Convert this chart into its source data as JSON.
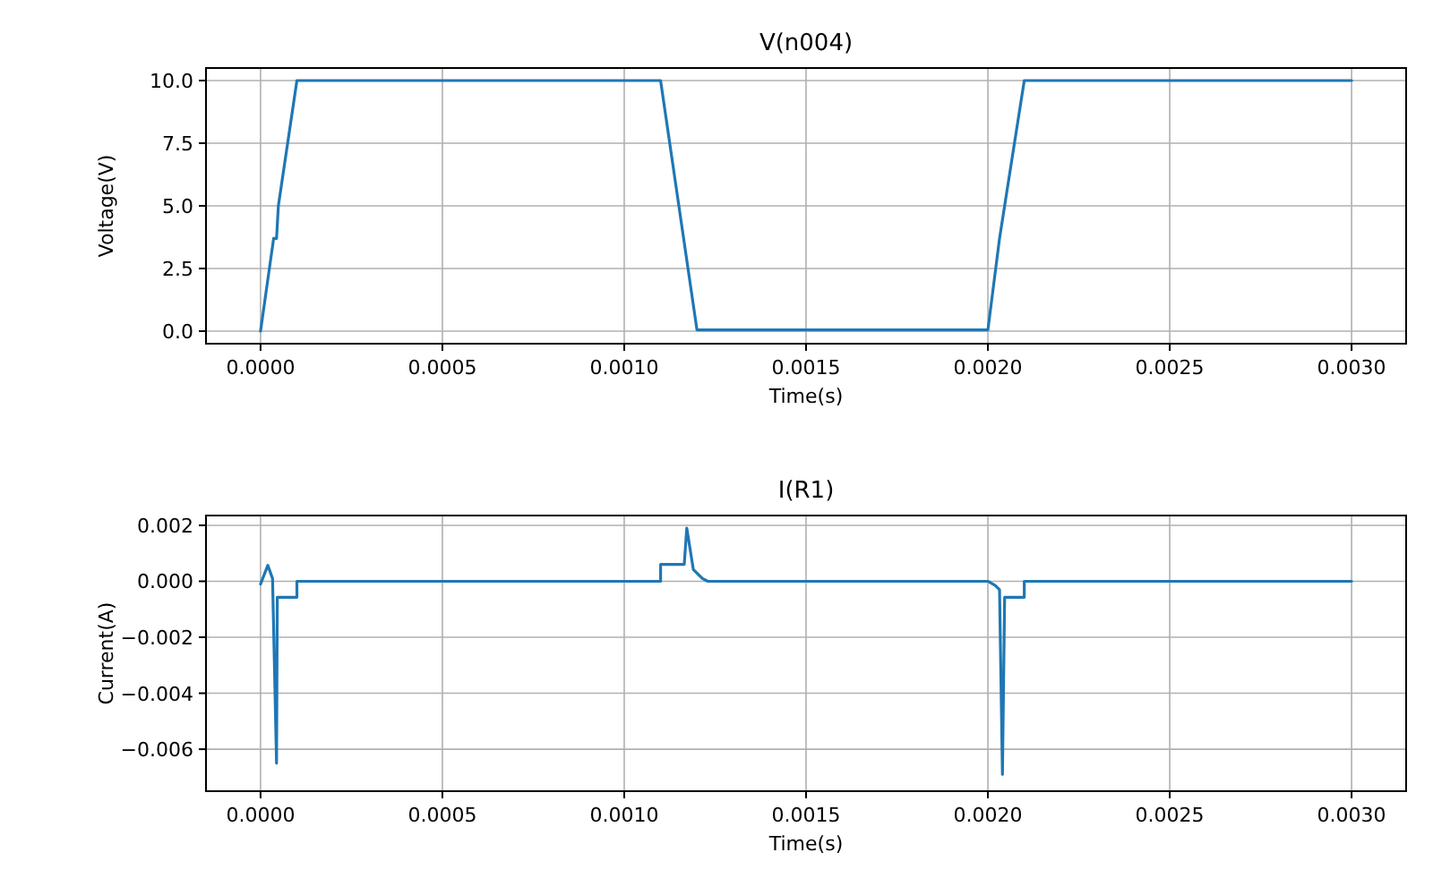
{
  "chart_data": [
    {
      "type": "line",
      "title": "V(n004)",
      "xlabel": "Time(s)",
      "ylabel": "Voltage(V)",
      "grid": true,
      "xlim": [
        -0.00015,
        0.00315
      ],
      "xticks": [
        {
          "value": 0,
          "label": "0.0000"
        },
        {
          "value": 0.0005,
          "label": "0.0005"
        },
        {
          "value": 0.001,
          "label": "0.0010"
        },
        {
          "value": 0.0015,
          "label": "0.0015"
        },
        {
          "value": 0.002,
          "label": "0.0020"
        },
        {
          "value": 0.0025,
          "label": "0.0025"
        },
        {
          "value": 0.003,
          "label": "0.0030"
        }
      ],
      "ylim": [
        -0.5,
        10.5
      ],
      "yticks": [
        {
          "value": 0,
          "label": "0.0"
        },
        {
          "value": 2.5,
          "label": "2.5"
        },
        {
          "value": 5,
          "label": "5.0"
        },
        {
          "value": 7.5,
          "label": "7.5"
        },
        {
          "value": 10,
          "label": "10.0"
        }
      ],
      "series": [
        {
          "color": "#1f77b4",
          "x": [
            0,
            3.6e-05,
            4.4e-05,
            4.9e-05,
            0.0001,
            0.0011,
            0.0012,
            0.002,
            0.002032,
            0.002046,
            0.0021,
            0.003
          ],
          "values": [
            0,
            3.7,
            3.7,
            5,
            10,
            10,
            0.05,
            0.05,
            3.7,
            5,
            10,
            10
          ]
        }
      ]
    },
    {
      "type": "line",
      "title": "I(R1)",
      "xlabel": "Time(s)",
      "ylabel": "Current(A)",
      "grid": true,
      "xlim": [
        -0.00015,
        0.00315
      ],
      "xticks": [
        {
          "value": 0,
          "label": "0.0000"
        },
        {
          "value": 0.0005,
          "label": "0.0005"
        },
        {
          "value": 0.001,
          "label": "0.0010"
        },
        {
          "value": 0.0015,
          "label": "0.0015"
        },
        {
          "value": 0.002,
          "label": "0.0020"
        },
        {
          "value": 0.0025,
          "label": "0.0025"
        },
        {
          "value": 0.003,
          "label": "0.0030"
        }
      ],
      "ylim": [
        -0.0075,
        0.00235
      ],
      "yticks": [
        {
          "value": -0.006,
          "label": "−0.006"
        },
        {
          "value": -0.004,
          "label": "−0.004"
        },
        {
          "value": -0.002,
          "label": "−0.002"
        },
        {
          "value": 0,
          "label": "0.000"
        },
        {
          "value": 0.002,
          "label": "0.002"
        }
      ],
      "series": [
        {
          "color": "#1f77b4",
          "x": [
            0,
            2e-05,
            3.3e-05,
            4.4e-05,
            4.6e-05,
            0.0001,
            0.0001,
            0.0011,
            0.0011,
            0.001165,
            0.001172,
            0.00119,
            0.001215,
            0.00123,
            0.002,
            0.00202,
            0.002032,
            0.00204,
            0.002046,
            0.0021,
            0.0021,
            0.003
          ],
          "values": [
            -0.0001,
            0.00057,
            0.0001,
            -0.0065,
            -0.00057,
            -0.00057,
            0,
            0,
            0.0006,
            0.0006,
            0.0019,
            0.00042,
            0.0001,
            0,
            0,
            -0.00015,
            -0.0003,
            -0.0069,
            -0.00057,
            -0.00057,
            0,
            0
          ]
        }
      ]
    }
  ]
}
